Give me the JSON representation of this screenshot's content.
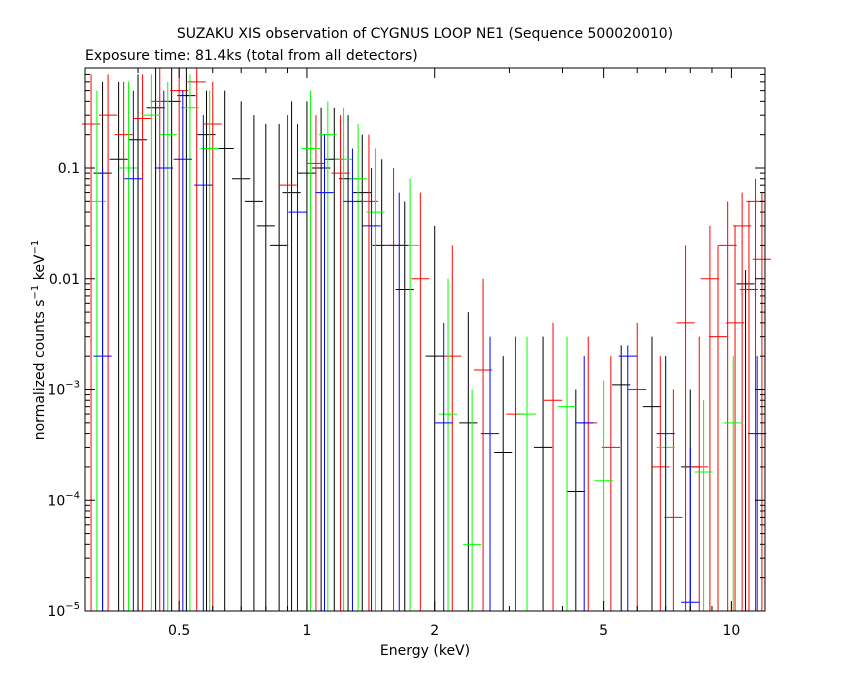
{
  "chart_data": {
    "type": "scatter",
    "title": "SUZAKU XIS observation of CYGNUS LOOP NE1 (Sequence 500020010)",
    "subtitle": "Exposure time: 81.4ks (total from all detectors)",
    "xlabel": "Energy (keV)",
    "ylabel": {
      "base": "normalized counts s",
      "sup1": "−1",
      "mid": " keV",
      "sup2": "−1"
    },
    "xscale": "log",
    "yscale": "log",
    "xlim": [
      0.3,
      12
    ],
    "ylim": [
      1e-05,
      0.8
    ],
    "x_ticks": [
      {
        "value": 0.5,
        "label": "0.5"
      },
      {
        "value": 1,
        "label": "1"
      },
      {
        "value": 2,
        "label": "2"
      },
      {
        "value": 5,
        "label": "5"
      },
      {
        "value": 10,
        "label": "10"
      }
    ],
    "y_ticks": [
      {
        "value": 0.1,
        "label": "0.1"
      },
      {
        "value": 0.01,
        "label": "0.01"
      },
      {
        "value": 0.001,
        "mant": "10",
        "exp": "−3"
      },
      {
        "value": 0.0001,
        "mant": "10",
        "exp": "−4"
      },
      {
        "value": 1e-05,
        "mant": "10",
        "exp": "−5"
      }
    ],
    "grid": false,
    "legend": "none",
    "series": [
      {
        "color": "#000000",
        "points": [
          [
            0.33,
            0.09,
            1e-05,
            0.6
          ],
          [
            0.36,
            0.12,
            1e-05,
            0.6
          ],
          [
            0.4,
            0.18,
            1e-05,
            0.7
          ],
          [
            0.44,
            0.35,
            1e-05,
            0.8
          ],
          [
            0.48,
            0.4,
            1e-05,
            0.8
          ],
          [
            0.52,
            0.45,
            1e-05,
            0.8
          ],
          [
            0.58,
            0.2,
            1e-05,
            0.5
          ],
          [
            0.64,
            0.15,
            1e-05,
            0.5
          ],
          [
            0.7,
            0.08,
            1e-05,
            0.4
          ],
          [
            0.75,
            0.05,
            1e-05,
            0.3
          ],
          [
            0.8,
            0.03,
            1e-05,
            0.25
          ],
          [
            0.86,
            0.02,
            1e-05,
            0.25
          ],
          [
            0.92,
            0.06,
            1e-05,
            0.4
          ],
          [
            1.0,
            0.09,
            1e-05,
            0.4
          ],
          [
            1.08,
            0.1,
            1e-05,
            0.35
          ],
          [
            1.16,
            0.12,
            1e-05,
            0.35
          ],
          [
            1.25,
            0.08,
            1e-05,
            0.3
          ],
          [
            1.35,
            0.06,
            1e-05,
            0.2
          ],
          [
            1.5,
            0.02,
            1e-05,
            0.12
          ],
          [
            1.7,
            0.008,
            1e-05,
            0.05
          ],
          [
            2.0,
            0.002,
            1e-05,
            0.03
          ],
          [
            2.4,
            0.0005,
            1e-05,
            0.005
          ],
          [
            2.9,
            0.00027,
            1e-05,
            0.002
          ],
          [
            3.6,
            0.0003,
            1e-05,
            0.003
          ],
          [
            4.3,
            0.00012,
            1e-05,
            0.001
          ],
          [
            5.5,
            0.0011,
            1e-05,
            0.0025
          ],
          [
            6.5,
            0.0007,
            1e-05,
            0.003
          ],
          [
            8.0,
            0.0002,
            1e-05,
            0.001
          ],
          [
            10.8,
            0.009,
            1e-05,
            0.012
          ]
        ]
      },
      {
        "color": "#ff0000",
        "points": [
          [
            0.31,
            0.25,
            1e-05,
            0.7
          ],
          [
            0.34,
            0.3,
            1e-05,
            0.7
          ],
          [
            0.37,
            0.2,
            1e-05,
            0.6
          ],
          [
            0.41,
            0.28,
            1e-05,
            0.7
          ],
          [
            0.45,
            0.4,
            1e-05,
            0.8
          ],
          [
            0.5,
            0.5,
            1e-05,
            0.8
          ],
          [
            0.55,
            0.6,
            1e-05,
            0.8
          ],
          [
            0.6,
            0.25,
            1e-05,
            0.6
          ],
          [
            0.9,
            0.07,
            1e-05,
            0.3
          ],
          [
            1.05,
            0.11,
            1e-05,
            0.3
          ],
          [
            1.2,
            0.09,
            1e-05,
            0.3
          ],
          [
            1.4,
            0.05,
            1e-05,
            0.2
          ],
          [
            1.6,
            0.02,
            1e-05,
            0.1
          ],
          [
            1.85,
            0.01,
            1e-05,
            0.06
          ],
          [
            2.2,
            0.002,
            1e-05,
            0.02
          ],
          [
            2.6,
            0.0015,
            1e-05,
            0.01
          ],
          [
            3.1,
            0.0006,
            1e-05,
            0.003
          ],
          [
            3.8,
            0.0008,
            1e-05,
            0.004
          ],
          [
            4.6,
            0.0005,
            1e-05,
            0.003
          ],
          [
            5.2,
            0.0003,
            1e-05,
            0.002
          ],
          [
            6.0,
            0.001,
            1e-05,
            0.004
          ],
          [
            6.8,
            0.0002,
            1e-05,
            0.002
          ],
          [
            7.3,
            7e-05,
            1e-05,
            0.001
          ],
          [
            7.8,
            0.004,
            1e-05,
            0.02
          ],
          [
            8.4,
            0.0002,
            1e-05,
            0.003
          ],
          [
            8.9,
            0.01,
            1e-05,
            0.03
          ],
          [
            9.3,
            0.003,
            1e-05,
            0.02
          ],
          [
            9.8,
            0.02,
            1e-05,
            0.05
          ],
          [
            10.2,
            0.004,
            1e-05,
            0.03
          ],
          [
            10.6,
            0.03,
            1e-05,
            0.06
          ],
          [
            11.0,
            0.008,
            1e-05,
            0.05
          ],
          [
            11.4,
            0.05,
            1e-05,
            0.08
          ],
          [
            11.8,
            0.015,
            1e-05,
            0.06
          ]
        ]
      },
      {
        "color": "#00ff00",
        "points": [
          [
            0.32,
            0.05,
            1e-05,
            0.5
          ],
          [
            0.38,
            0.1,
            1e-05,
            0.6
          ],
          [
            0.43,
            0.3,
            1e-05,
            0.7
          ],
          [
            0.47,
            0.2,
            1e-05,
            0.6
          ],
          [
            0.53,
            0.35,
            1e-05,
            0.7
          ],
          [
            0.59,
            0.15,
            1e-05,
            0.5
          ],
          [
            1.02,
            0.15,
            1e-05,
            0.5
          ],
          [
            1.12,
            0.2,
            1e-05,
            0.4
          ],
          [
            1.22,
            0.12,
            1e-05,
            0.35
          ],
          [
            1.32,
            0.08,
            1e-05,
            0.25
          ],
          [
            1.45,
            0.04,
            1e-05,
            0.15
          ],
          [
            1.75,
            0.02,
            1e-05,
            0.08
          ],
          [
            2.15,
            0.0006,
            1e-05,
            0.01
          ],
          [
            2.45,
            4e-05,
            1e-05,
            0.001
          ],
          [
            3.3,
            0.0006,
            1e-05,
            0.003
          ],
          [
            4.1,
            0.0007,
            1e-05,
            0.003
          ],
          [
            5.0,
            0.00015,
            1e-05,
            0.0012
          ],
          [
            7.0,
            0.0003,
            1e-05,
            0.002
          ],
          [
            8.6,
            0.00018,
            1e-05,
            0.0008
          ],
          [
            10.1,
            0.0005,
            1e-05,
            0.002
          ]
        ]
      },
      {
        "color": "#0000ff",
        "points": [
          [
            0.33,
            0.002,
            1e-05,
            0.1
          ],
          [
            0.39,
            0.08,
            1e-05,
            0.5
          ],
          [
            0.46,
            0.1,
            1e-05,
            0.5
          ],
          [
            0.51,
            0.12,
            1e-05,
            0.5
          ],
          [
            0.57,
            0.07,
            1e-05,
            0.3
          ],
          [
            0.95,
            0.04,
            1e-05,
            0.25
          ],
          [
            1.1,
            0.06,
            1e-05,
            0.2
          ],
          [
            1.28,
            0.05,
            1e-05,
            0.15
          ],
          [
            1.42,
            0.03,
            1e-05,
            0.1
          ],
          [
            1.65,
            0.02,
            1e-05,
            0.06
          ],
          [
            2.1,
            0.0005,
            1e-05,
            0.004
          ],
          [
            2.7,
            0.0004,
            1e-05,
            0.003
          ],
          [
            4.5,
            0.0005,
            1e-05,
            0.002
          ],
          [
            5.7,
            0.002,
            1e-05,
            0.0025
          ],
          [
            7.0,
            0.0004,
            1e-05,
            0.002
          ],
          [
            8.0,
            1.2e-05,
            1e-05,
            0.0003
          ],
          [
            11.5,
            0.0004,
            1e-05,
            0.002
          ]
        ]
      }
    ]
  }
}
